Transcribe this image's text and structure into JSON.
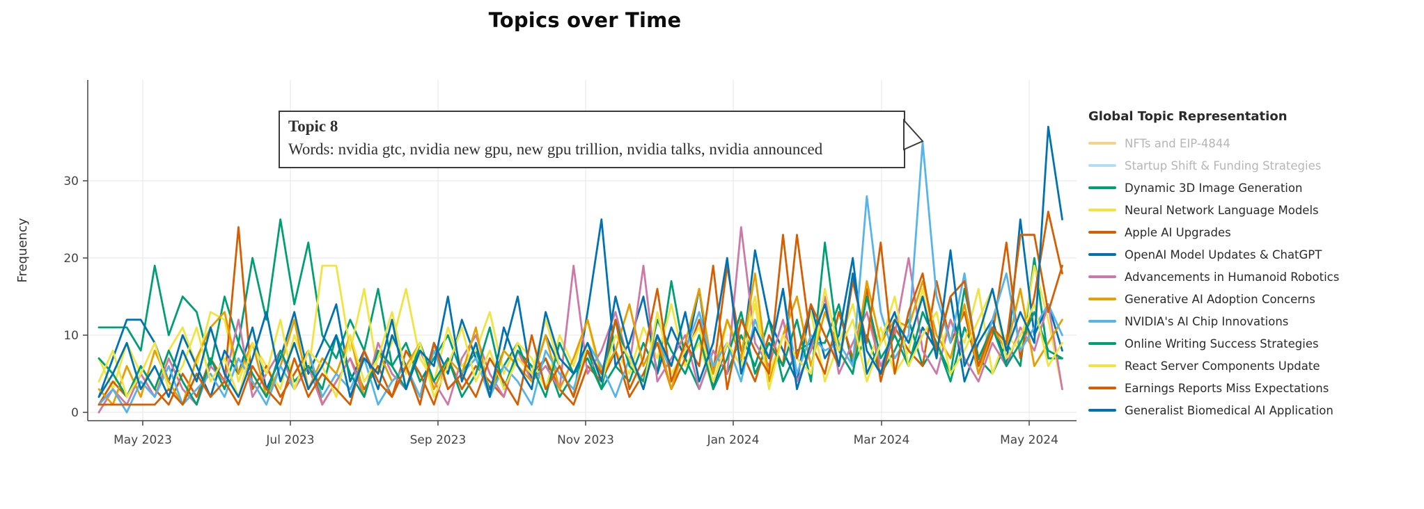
{
  "title": "Topics over Time",
  "axes": {
    "y_label": "Frequency",
    "x_tick_labels": [
      "May 2023",
      "Jul 2023",
      "Sep 2023",
      "Nov 2023",
      "Jan 2024",
      "Mar 2024",
      "May 2024"
    ],
    "y_tick_labels": [
      "0",
      "10",
      "20",
      "30"
    ]
  },
  "tooltip": {
    "title": "Topic 8",
    "body": "Words: nvidia gtc, nvidia new gpu, new gpu trillion, nvidia talks, nvidia announced"
  },
  "legend": {
    "title": "Global Topic Representation"
  },
  "chart_data": {
    "type": "line",
    "title": "Topics over Time",
    "xlabel": "",
    "ylabel": "Frequency",
    "x_start_date": "2023-04-13",
    "x_step_days": 6,
    "n_points": 70,
    "xticks": [
      "May 2023",
      "Jul 2023",
      "Sep 2023",
      "Nov 2023",
      "Jan 2024",
      "Mar 2024",
      "May 2024"
    ],
    "yticks": [
      0,
      10,
      20,
      30
    ],
    "ylim": [
      0,
      43
    ],
    "grid": true,
    "legend_position": "right",
    "series": [
      {
        "name": "NFTs and EIP-4844",
        "color": "#E69F00",
        "visible": false,
        "legend_muted": true,
        "values": []
      },
      {
        "name": "Startup Shift & Funding Strategies",
        "color": "#56B4E9",
        "visible": false,
        "legend_muted": true,
        "values": []
      },
      {
        "name": "Dynamic 3D Image Generation",
        "color": "#009E73",
        "visible": true,
        "legend_muted": false,
        "values": [
          11,
          11,
          11,
          8,
          19,
          10,
          15,
          13,
          6,
          15,
          9,
          20,
          12,
          25,
          14,
          22,
          10,
          7,
          12,
          8,
          16,
          6,
          9,
          4,
          7,
          10,
          5,
          8,
          3,
          6,
          9,
          4,
          7,
          2,
          5,
          8,
          3,
          6,
          4,
          9,
          5,
          17,
          7,
          3,
          8,
          5,
          10,
          6,
          12,
          4,
          8,
          9,
          9,
          14,
          6,
          10,
          5,
          8,
          12,
          6,
          9,
          4,
          11,
          7,
          5,
          9,
          6,
          20,
          7,
          7
        ]
      },
      {
        "name": "Neural Network Language Models",
        "color": "#F0E442",
        "visible": true,
        "legend_muted": false,
        "values": [
          7,
          3,
          9,
          5,
          2,
          8,
          11,
          6,
          13,
          12,
          4,
          9,
          6,
          3,
          10,
          5,
          19,
          19,
          8,
          16,
          5,
          9,
          16,
          7,
          4,
          11,
          6,
          8,
          13,
          5,
          9,
          7,
          3,
          10,
          6,
          12,
          4,
          8,
          5,
          11,
          7,
          14,
          6,
          9,
          3,
          12,
          8,
          15,
          5,
          10,
          7,
          13,
          4,
          9,
          14,
          6,
          11,
          5,
          8,
          16,
          7,
          12,
          9,
          16,
          5,
          10,
          8,
          19,
          12,
          3
        ]
      },
      {
        "name": "Apple AI Upgrades",
        "color": "#D55E00",
        "visible": true,
        "legend_muted": false,
        "values": [
          1,
          4,
          2,
          6,
          3,
          1,
          5,
          2,
          7,
          4,
          24,
          3,
          6,
          2,
          5,
          8,
          1,
          4,
          7,
          3,
          6,
          2,
          8,
          5,
          1,
          7,
          3,
          6,
          4,
          2,
          8,
          5,
          7,
          3,
          1,
          6,
          4,
          8,
          2,
          5,
          9,
          3,
          7,
          12,
          5,
          19,
          8,
          4,
          10,
          6,
          23,
          9,
          5,
          13,
          7,
          16,
          4,
          11,
          8,
          6,
          17,
          9,
          13,
          5,
          10,
          22,
          7,
          15,
          26,
          18
        ]
      },
      {
        "name": "OpenAI Model Updates & ChatGPT",
        "color": "#0072B2",
        "visible": true,
        "legend_muted": false,
        "values": [
          2,
          7,
          12,
          12,
          9,
          4,
          10,
          6,
          2,
          8,
          5,
          11,
          3,
          7,
          13,
          5,
          9,
          14,
          4,
          8,
          3,
          10,
          6,
          2,
          9,
          5,
          12,
          7,
          3,
          8,
          15,
          4,
          10,
          6,
          2,
          13,
          25,
          6,
          9,
          15,
          5,
          11,
          7,
          16,
          3,
          9,
          6,
          21,
          12,
          8,
          4,
          14,
          7,
          10,
          20,
          5,
          9,
          13,
          6,
          11,
          8,
          15,
          4,
          9,
          12,
          6,
          25,
          10,
          14,
          8
        ]
      },
      {
        "name": "Advancements in Humanoid Robotics",
        "color": "#CC79A7",
        "visible": true,
        "legend_muted": false,
        "values": [
          0,
          3,
          1,
          5,
          2,
          7,
          3,
          1,
          6,
          4,
          12,
          2,
          5,
          8,
          3,
          6,
          1,
          4,
          7,
          2,
          9,
          5,
          3,
          8,
          4,
          1,
          7,
          10,
          5,
          2,
          8,
          4,
          6,
          3,
          19,
          5,
          8,
          13,
          6,
          19,
          4,
          7,
          10,
          3,
          8,
          5,
          24,
          9,
          6,
          12,
          4,
          8,
          15,
          5,
          9,
          13,
          6,
          10,
          20,
          8,
          5,
          12,
          7,
          4,
          9,
          6,
          11,
          8,
          14,
          3
        ]
      },
      {
        "name": "Generative AI Adoption Concerns",
        "color": "#E69F00",
        "visible": true,
        "legend_muted": false,
        "values": [
          3,
          1,
          6,
          2,
          8,
          4,
          1,
          7,
          11,
          13,
          5,
          9,
          2,
          6,
          12,
          3,
          7,
          5,
          10,
          2,
          8,
          4,
          6,
          9,
          3,
          7,
          5,
          11,
          2,
          8,
          6,
          4,
          10,
          3,
          7,
          12,
          5,
          8,
          14,
          6,
          10,
          3,
          9,
          16,
          5,
          12,
          7,
          18,
          4,
          10,
          15,
          6,
          13,
          8,
          5,
          17,
          9,
          12,
          11,
          17,
          10,
          7,
          14,
          5,
          11,
          8,
          16,
          6,
          9,
          12
        ]
      },
      {
        "name": "NVIDIA's AI Chip Innovations",
        "color": "#56B4E9",
        "visible": true,
        "legend_muted": false,
        "values": [
          1,
          3,
          0,
          4,
          2,
          6,
          1,
          3,
          5,
          2,
          7,
          4,
          1,
          6,
          3,
          8,
          2,
          5,
          3,
          7,
          1,
          4,
          6,
          2,
          8,
          3,
          5,
          7,
          2,
          6,
          4,
          1,
          8,
          5,
          3,
          9,
          6,
          2,
          7,
          4,
          10,
          5,
          8,
          13,
          6,
          9,
          4,
          12,
          7,
          16,
          5,
          10,
          8,
          9,
          6,
          28,
          13,
          7,
          10,
          35,
          15,
          9,
          18,
          6,
          12,
          18,
          8,
          11,
          14,
          10
        ]
      },
      {
        "name": "Online Writing Success Strategies",
        "color": "#009E73",
        "visible": true,
        "legend_muted": false,
        "values": [
          7,
          5,
          2,
          6,
          3,
          8,
          4,
          1,
          7,
          3,
          9,
          5,
          2,
          8,
          4,
          6,
          3,
          10,
          5,
          2,
          8,
          6,
          3,
          9,
          4,
          7,
          2,
          5,
          11,
          3,
          8,
          6,
          2,
          9,
          5,
          7,
          3,
          12,
          6,
          4,
          12,
          8,
          5,
          10,
          3,
          7,
          13,
          5,
          9,
          6,
          12,
          4,
          22,
          8,
          5,
          15,
          7,
          10,
          6,
          13,
          9,
          5,
          16,
          7,
          11,
          6,
          9,
          13,
          8,
          7
        ]
      },
      {
        "name": "React Server Components Update",
        "color": "#F0E442",
        "visible": true,
        "legend_muted": false,
        "values": [
          4,
          8,
          2,
          5,
          9,
          3,
          6,
          11,
          4,
          7,
          2,
          9,
          5,
          12,
          3,
          8,
          6,
          2,
          10,
          4,
          7,
          13,
          5,
          9,
          2,
          6,
          11,
          4,
          8,
          3,
          7,
          5,
          12,
          6,
          2,
          9,
          4,
          10,
          7,
          3,
          13,
          5,
          8,
          11,
          4,
          9,
          6,
          14,
          3,
          10,
          7,
          5,
          16,
          8,
          12,
          4,
          9,
          15,
          6,
          10,
          13,
          5,
          8,
          12,
          16,
          7,
          10,
          14,
          6,
          9
        ]
      },
      {
        "name": "Earnings Reports Miss Expectations",
        "color": "#D55E00",
        "visible": true,
        "legend_muted": false,
        "values": [
          1,
          1,
          1,
          1,
          1,
          3,
          1,
          5,
          2,
          4,
          1,
          6,
          3,
          1,
          7,
          2,
          5,
          3,
          1,
          8,
          4,
          2,
          6,
          1,
          9,
          3,
          5,
          2,
          7,
          4,
          1,
          10,
          3,
          6,
          2,
          8,
          5,
          12,
          3,
          7,
          16,
          4,
          9,
          6,
          19,
          3,
          12,
          8,
          5,
          23,
          7,
          14,
          10,
          6,
          17,
          9,
          22,
          5,
          13,
          18,
          8,
          15,
          17,
          6,
          11,
          9,
          23,
          23,
          13,
          19
        ]
      },
      {
        "name": "Generalist Biomedical AI Application",
        "color": "#0072B2",
        "visible": true,
        "legend_muted": false,
        "values": [
          2,
          5,
          9,
          3,
          6,
          2,
          8,
          4,
          11,
          5,
          2,
          7,
          13,
          4,
          9,
          3,
          6,
          10,
          2,
          7,
          5,
          12,
          3,
          8,
          6,
          15,
          4,
          9,
          2,
          11,
          6,
          3,
          13,
          7,
          5,
          9,
          4,
          15,
          8,
          3,
          10,
          6,
          13,
          4,
          9,
          20,
          5,
          11,
          7,
          16,
          3,
          9,
          14,
          6,
          18,
          8,
          5,
          12,
          9,
          15,
          7,
          21,
          6,
          10,
          16,
          8,
          13,
          9,
          37,
          25
        ]
      }
    ]
  }
}
